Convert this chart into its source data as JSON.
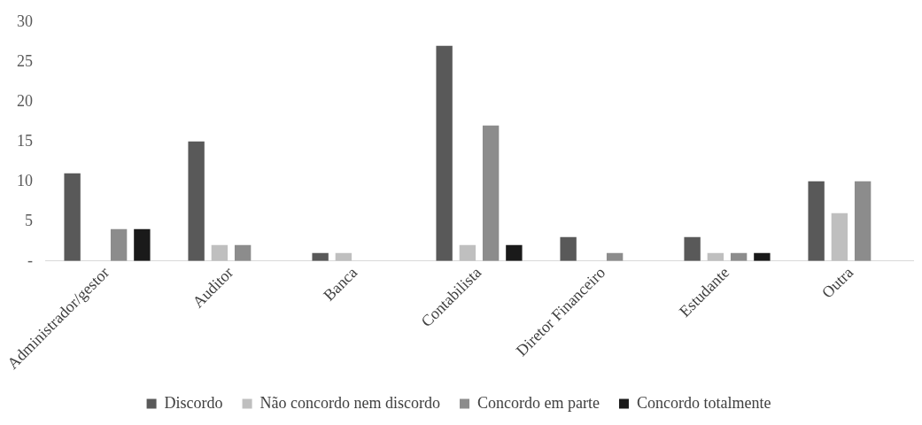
{
  "chart_data": {
    "type": "bar",
    "categories": [
      "Administrador/gestor",
      "Auditor",
      "Banca",
      "Contabilista",
      "Diretor Financeiro",
      "Estudante",
      "Outra"
    ],
    "series": [
      {
        "name": "Discordo",
        "color": "#595959",
        "values": [
          11,
          15,
          1,
          27,
          3,
          3,
          10
        ]
      },
      {
        "name": "Não concordo nem discordo",
        "color": "#bfbfbf",
        "values": [
          0,
          2,
          1,
          2,
          0,
          1,
          6
        ]
      },
      {
        "name": "Concordo em parte",
        "color": "#8c8c8c",
        "values": [
          4,
          2,
          0,
          17,
          1,
          1,
          10
        ]
      },
      {
        "name": "Concordo totalmente",
        "color": "#1a1a1a",
        "values": [
          4,
          0,
          0,
          2,
          0,
          1,
          0
        ]
      }
    ],
    "ylim": [
      0,
      30
    ],
    "yticks": [
      {
        "value": 0,
        "label": "-"
      },
      5,
      10,
      15,
      20,
      25,
      30
    ],
    "grid": false,
    "legend": "bottom"
  }
}
